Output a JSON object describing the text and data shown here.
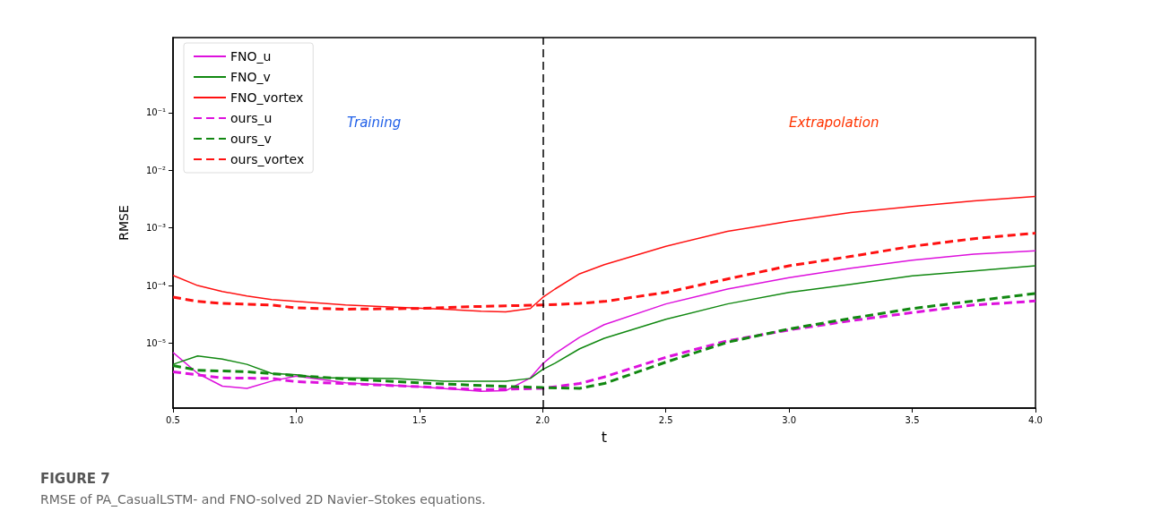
{
  "chart_data": {
    "type": "line",
    "title": "FIGURE 7",
    "subtitle": "RMSE of PA_CasualLSTM- and FNO-solved 2D Navier–Stokes equations.",
    "xlabel": "t",
    "ylabel": "RMSE",
    "annotations": [
      "Training",
      "Extrapolation"
    ],
    "log": "y",
    "grid": false,
    "legend": "top left",
    "marker": "none",
    "xlim": [
      0.5,
      4.0
    ],
    "xticks": [
      {
        "value": 0.5,
        "label": "0.5"
      },
      {
        "value": 1,
        "label": "1.0"
      },
      {
        "value": 1.5,
        "label": "1.5"
      },
      {
        "value": 2,
        "label": "2.0"
      },
      {
        "value": 2.5,
        "label": "2.5"
      },
      {
        "value": 3,
        "label": "3.0"
      },
      {
        "value": 3.5,
        "label": "3.5"
      },
      {
        "value": 4,
        "label": "4.0"
      }
    ],
    "ylim": [
      7.5e-07,
      2
    ],
    "yticks": [
      {
        "value": 1e-05,
        "label": "10⁻⁵"
      },
      {
        "value": 0.0001,
        "label": "10⁻⁴"
      },
      {
        "value": 0.001,
        "label": "10⁻³"
      },
      {
        "value": 0.01,
        "label": "10⁻²"
      },
      {
        "value": 0.1,
        "label": "10⁻¹"
      }
    ],
    "ref_lines": [
      {
        "axis": "x",
        "value": 2,
        "label": null,
        "color": "#000000",
        "line_style": "dashed"
      }
    ],
    "series": [
      {
        "name": "FNO_u",
        "color": "#dd11dd",
        "line_style": "solid",
        "x": [
          0.5,
          0.6,
          0.7,
          0.8,
          0.9,
          1.0,
          1.2,
          1.5,
          1.75,
          1.85,
          1.95,
          2.0,
          2.05,
          2.15,
          2.25,
          2.5,
          2.75,
          3.0,
          3.25,
          3.5,
          3.75,
          4.0
        ],
        "values": [
          6.9e-06,
          3e-06,
          1.8e-06,
          1.65e-06,
          2.2e-06,
          2.7e-06,
          2.05e-06,
          1.76e-06,
          1.47e-06,
          1.5e-06,
          2.5e-06,
          4.4e-06,
          6.6e-06,
          1.27e-05,
          2.1e-05,
          4.8e-05,
          8.7e-05,
          0.000137,
          0.0002,
          0.000275,
          0.00035,
          0.0004
        ]
      },
      {
        "name": "FNO_v",
        "color": "#118811",
        "line_style": "solid",
        "x": [
          0.5,
          0.6,
          0.7,
          0.8,
          0.9,
          1.0,
          1.1,
          1.2,
          1.4,
          1.6,
          1.85,
          1.95,
          2.0,
          2.05,
          2.15,
          2.25,
          2.5,
          2.75,
          3.0,
          3.25,
          3.5,
          3.75,
          4.0
        ],
        "values": [
          4.3e-06,
          6e-06,
          5.3e-06,
          4.3e-06,
          3e-06,
          2.85e-06,
          2.5e-06,
          2.5e-06,
          2.45e-06,
          2.2e-06,
          2.2e-06,
          2.45e-06,
          3.5e-06,
          4.5e-06,
          8e-06,
          1.22e-05,
          2.6e-05,
          4.8e-05,
          7.6e-05,
          0.000105,
          0.000147,
          0.00018,
          0.00022
        ]
      },
      {
        "name": "FNO_vortex",
        "color": "#ff1111",
        "line_style": "solid",
        "x": [
          0.5,
          0.6,
          0.7,
          0.8,
          0.9,
          1.0,
          1.2,
          1.4,
          1.6,
          1.75,
          1.85,
          1.95,
          2.0,
          2.05,
          2.15,
          2.25,
          2.5,
          2.75,
          3.0,
          3.25,
          3.5,
          3.75,
          4.0
        ],
        "values": [
          0.00015,
          0.0001,
          7.9e-05,
          6.6e-05,
          5.7e-05,
          5.3e-05,
          4.6e-05,
          4.2e-05,
          3.9e-05,
          3.6e-05,
          3.5e-05,
          4e-05,
          6.2e-05,
          8.7e-05,
          0.00016,
          0.00023,
          0.00048,
          0.00087,
          0.0013,
          0.00185,
          0.00235,
          0.00295,
          0.0035
        ]
      },
      {
        "name": "ours_u",
        "color": "#dd11dd",
        "line_style": "dashed",
        "x": [
          0.5,
          0.7,
          0.9,
          1.0,
          1.2,
          1.5,
          1.75,
          2.0,
          2.15,
          2.25,
          2.5,
          2.75,
          3.0,
          3.25,
          3.5,
          3.75,
          4.0
        ],
        "values": [
          3.2e-06,
          2.5e-06,
          2.45e-06,
          2.15e-06,
          2e-06,
          1.76e-06,
          1.56e-06,
          1.65e-06,
          2e-06,
          2.6e-06,
          5.7e-06,
          1.1e-05,
          1.7e-05,
          2.45e-05,
          3.4e-05,
          4.6e-05,
          5.4e-05
        ]
      },
      {
        "name": "ours_v",
        "color": "#118811",
        "line_style": "dashed",
        "x": [
          0.5,
          0.6,
          0.8,
          1.0,
          1.2,
          1.5,
          1.75,
          2.0,
          2.15,
          2.25,
          2.5,
          2.75,
          3.0,
          3.25,
          3.5,
          3.75,
          4.0
        ],
        "values": [
          4.1e-06,
          3.4e-06,
          3.2e-06,
          2.75e-06,
          2.4e-06,
          2.05e-06,
          1.85e-06,
          1.7e-06,
          1.65e-06,
          2e-06,
          4.7e-06,
          1.04e-05,
          1.77e-05,
          2.7e-05,
          4e-05,
          5.4e-05,
          7.3e-05
        ]
      },
      {
        "name": "ours_vortex",
        "color": "#ff1111",
        "line_style": "dashed",
        "x": [
          0.5,
          0.6,
          0.7,
          0.9,
          1.0,
          1.2,
          1.5,
          1.7,
          1.9,
          2.0,
          2.15,
          2.25,
          2.5,
          2.75,
          3.0,
          3.25,
          3.5,
          3.75,
          4.0
        ],
        "values": [
          6.3e-05,
          5.3e-05,
          4.9e-05,
          4.6e-05,
          4.1e-05,
          3.9e-05,
          4e-05,
          4.3e-05,
          4.5e-05,
          4.6e-05,
          4.9e-05,
          5.3e-05,
          7.6e-05,
          0.00013,
          0.00022,
          0.00032,
          0.00048,
          0.00065,
          0.00081
        ]
      }
    ]
  }
}
